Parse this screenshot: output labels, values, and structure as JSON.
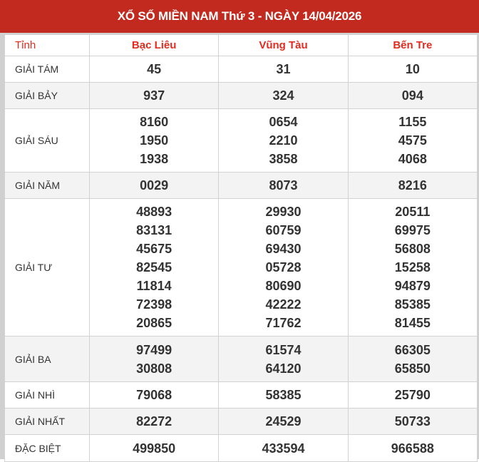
{
  "title": "XỔ SỐ MIỀN NAM Thứ 3 - NGÀY 14/04/2026",
  "header": {
    "label": "Tỉnh",
    "provinces": [
      "Bạc Liêu",
      "Vũng Tàu",
      "Bến Tre"
    ]
  },
  "colors": {
    "brand": "#c22a1f",
    "special": "#f0261a"
  },
  "rows": [
    {
      "label": "GIẢI TÁM",
      "values": [
        [
          "45"
        ],
        [
          "31"
        ],
        [
          "10"
        ]
      ]
    },
    {
      "label": "GIẢI BẢY",
      "values": [
        [
          "937"
        ],
        [
          "324"
        ],
        [
          "094"
        ]
      ]
    },
    {
      "label": "GIẢI SÁU",
      "values": [
        [
          "8160",
          "1950",
          "1938"
        ],
        [
          "0654",
          "2210",
          "3858"
        ],
        [
          "1155",
          "4575",
          "4068"
        ]
      ]
    },
    {
      "label": "GIẢI NĂM",
      "values": [
        [
          "0029"
        ],
        [
          "8073"
        ],
        [
          "8216"
        ]
      ]
    },
    {
      "label": "GIẢI TƯ",
      "values": [
        [
          "48893",
          "83131",
          "45675",
          "82545",
          "11814",
          "72398",
          "20865"
        ],
        [
          "29930",
          "60759",
          "69430",
          "05728",
          "80690",
          "42222",
          "71762"
        ],
        [
          "20511",
          "69975",
          "56808",
          "15258",
          "94879",
          "85385",
          "81455"
        ]
      ]
    },
    {
      "label": "GIẢI BA",
      "values": [
        [
          "97499",
          "30808"
        ],
        [
          "61574",
          "64120"
        ],
        [
          "66305",
          "65850"
        ]
      ]
    },
    {
      "label": "GIẢI NHÌ",
      "values": [
        [
          "79068"
        ],
        [
          "58385"
        ],
        [
          "25790"
        ]
      ]
    },
    {
      "label": "GIẢI NHẤT",
      "values": [
        [
          "82272"
        ],
        [
          "24529"
        ],
        [
          "50733"
        ]
      ]
    },
    {
      "label": "ĐẶC BIỆT",
      "values": [
        [
          "499850"
        ],
        [
          "433594"
        ],
        [
          "966588"
        ]
      ],
      "special": true
    }
  ]
}
